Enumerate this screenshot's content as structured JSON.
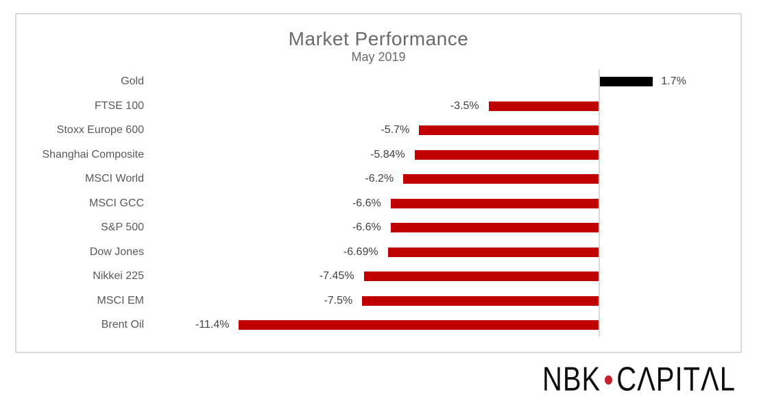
{
  "chart_data": {
    "type": "bar",
    "orientation": "horizontal",
    "title": "Market Performance",
    "subtitle": "May 2019",
    "categories": [
      "Gold",
      "FTSE 100",
      "Stoxx Europe 600",
      "Shanghai Composite",
      "MSCI World",
      "MSCI GCC",
      "S&P 500",
      "Dow Jones",
      "Nikkei 225",
      "MSCI EM",
      "Brent Oil"
    ],
    "values": [
      1.7,
      -3.5,
      -5.7,
      -5.84,
      -6.2,
      -6.6,
      -6.6,
      -6.69,
      -7.45,
      -7.5,
      -11.4
    ],
    "value_labels": [
      "1.7%",
      "-3.5%",
      "-5.7%",
      "-5.84%",
      "-6.2%",
      "-6.6%",
      "-6.6%",
      "-6.69%",
      "-7.45%",
      "-7.5%",
      "-11.4%"
    ],
    "xlim": [
      -13.5,
      4.5
    ],
    "grid": false,
    "legend": false,
    "value_label_position": "outside-end",
    "bar_colors": {
      "positive": "#000000",
      "negative": "#C00000"
    }
  },
  "branding": {
    "logo_nbk": "NBK",
    "logo_capital": "CΛPITΛL",
    "logo_dot_color": "#C52030"
  },
  "colors": {
    "title": "#6A6A6A",
    "category_label": "#595959",
    "value_label": "#404040",
    "axis_line": "#D9D9D9",
    "frame_border": "#D9D9D9",
    "background": "#FFFFFF"
  }
}
